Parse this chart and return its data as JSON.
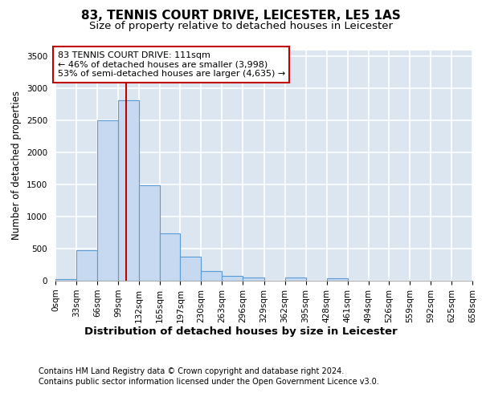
{
  "title": "83, TENNIS COURT DRIVE, LEICESTER, LE5 1AS",
  "subtitle": "Size of property relative to detached houses in Leicester",
  "xlabel": "Distribution of detached houses by size in Leicester",
  "ylabel": "Number of detached properties",
  "footnote1": "Contains HM Land Registry data © Crown copyright and database right 2024.",
  "footnote2": "Contains public sector information licensed under the Open Government Licence v3.0.",
  "annotation_line1": "83 TENNIS COURT DRIVE: 111sqm",
  "annotation_line2": "← 46% of detached houses are smaller (3,998)",
  "annotation_line3": "53% of semi-detached houses are larger (4,635) →",
  "property_sqm": 111,
  "bin_edges": [
    0,
    33,
    66,
    99,
    132,
    165,
    197,
    230,
    263,
    296,
    329,
    362,
    395,
    428,
    461,
    494,
    526,
    559,
    592,
    625,
    658
  ],
  "bar_heights": [
    25,
    475,
    2510,
    2820,
    1490,
    740,
    380,
    155,
    80,
    55,
    0,
    50,
    0,
    40,
    0,
    0,
    0,
    0,
    0,
    0
  ],
  "bar_color": "#c6d9f0",
  "bar_edge_color": "#5b9bd5",
  "vline_color": "#c00000",
  "vline_x": 111,
  "ylim": [
    0,
    3600
  ],
  "yticks": [
    0,
    500,
    1000,
    1500,
    2000,
    2500,
    3000,
    3500
  ],
  "bg_color": "#dce6f1",
  "grid_color": "#ffffff",
  "title_fontsize": 11,
  "subtitle_fontsize": 9.5,
  "ylabel_fontsize": 8.5,
  "xlabel_fontsize": 9.5,
  "tick_fontsize": 7.5,
  "annotation_fontsize": 8,
  "footnote_fontsize": 7
}
